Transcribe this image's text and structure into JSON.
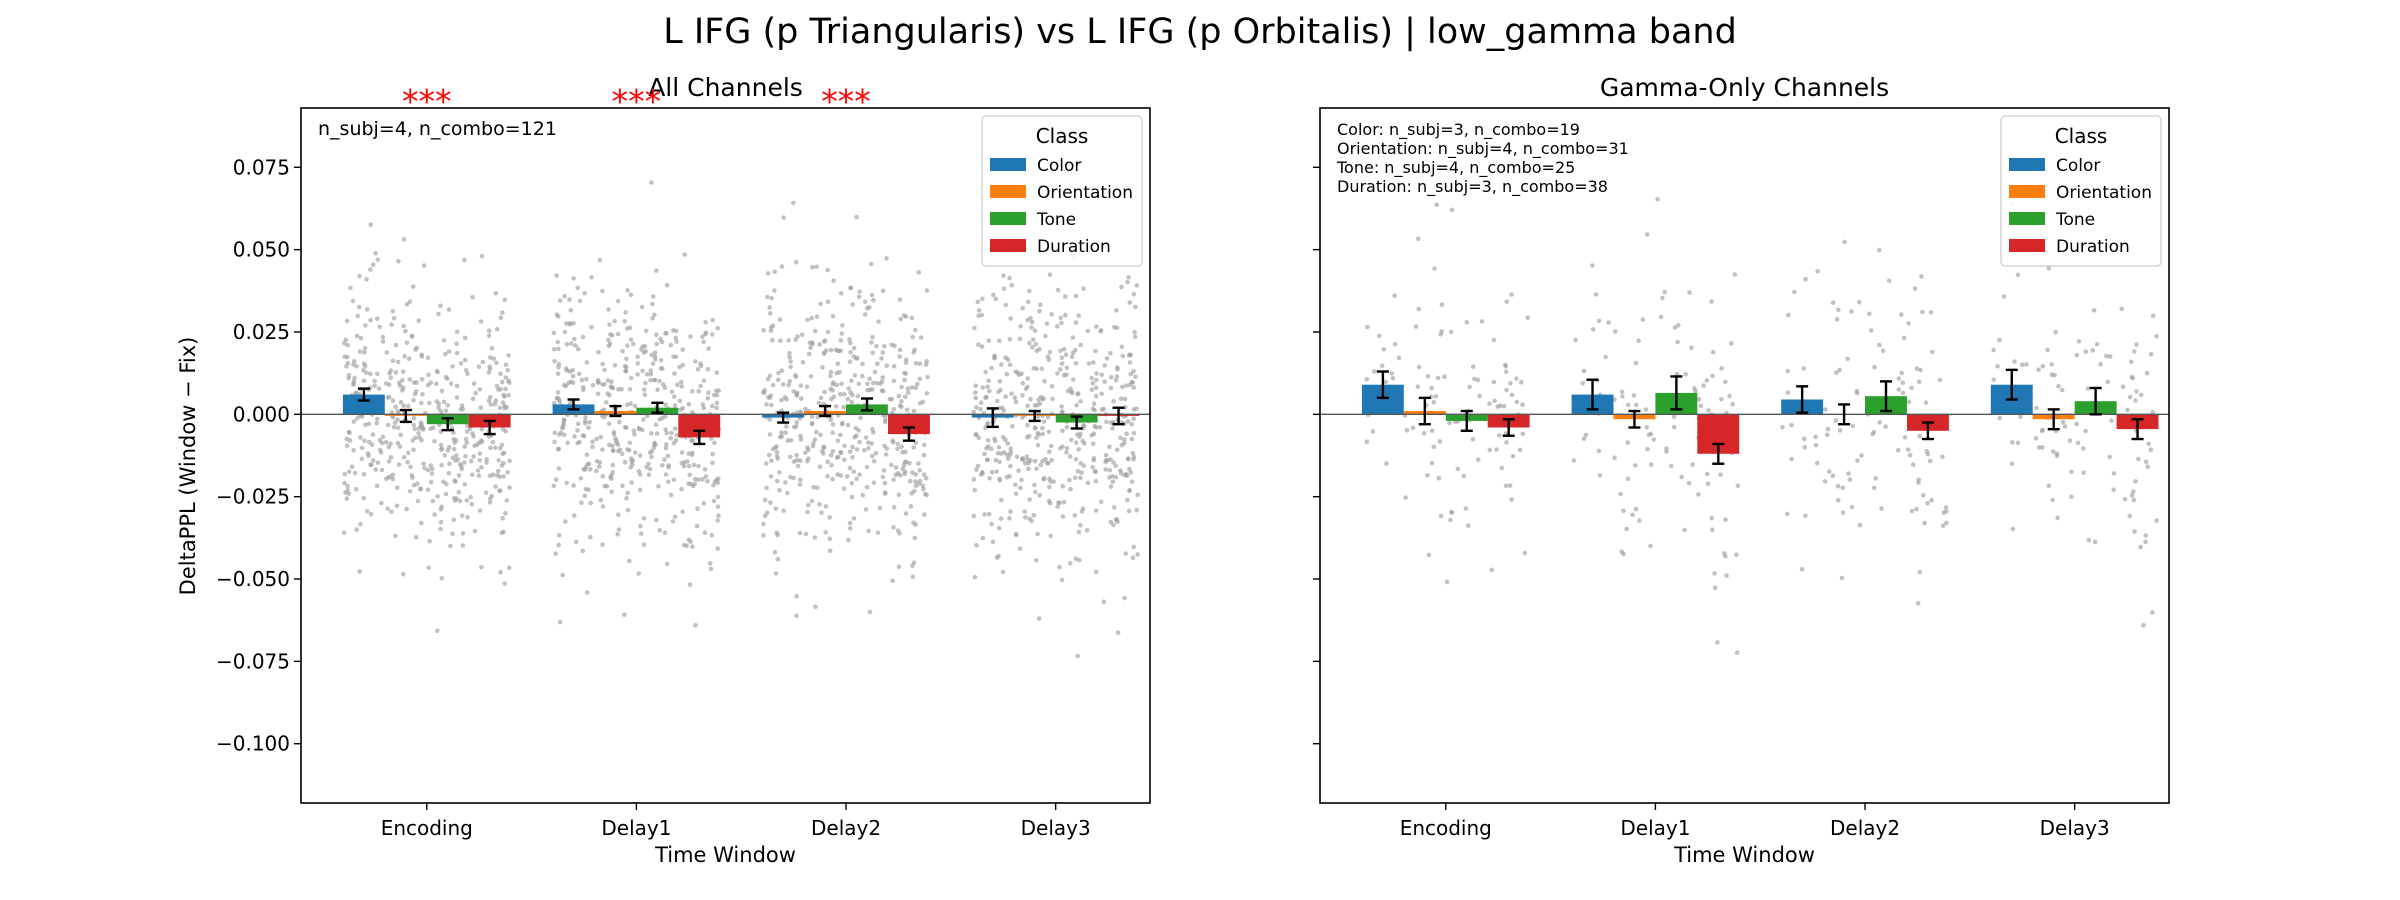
{
  "chart_data": {
    "title": "L IFG (p Triangularis) vs L IFG (p Orbitalis)  |  low_gamma band",
    "type": "bar",
    "ylabel": "DeltaPPL (Window − Fix)",
    "categories": [
      "Encoding",
      "Delay1",
      "Delay2",
      "Delay3"
    ],
    "ylim": [
      -0.118,
      0.093
    ],
    "yticks": [
      0.075,
      0.05,
      0.025,
      0.0,
      -0.025,
      -0.05,
      -0.075,
      -0.1
    ],
    "ytick_labels": [
      "0.075",
      "0.050",
      "0.025",
      "0.000",
      "−0.025",
      "−0.050",
      "−0.075",
      "−0.100"
    ],
    "legend": {
      "title": "Class",
      "placement": "upper right",
      "entries": [
        "Color",
        "Orientation",
        "Tone",
        "Duration"
      ]
    },
    "colors": {
      "Color": "#1f77b4",
      "Orientation": "#ff7f0e",
      "Tone": "#2ca02c",
      "Duration": "#d62728"
    },
    "panels": [
      {
        "title": "All Channels",
        "xlabel": "Time Window",
        "annotation": [
          "n_subj=4, n_combo=121"
        ],
        "significance": [
          {
            "category": "Encoding",
            "label": "***"
          },
          {
            "category": "Delay1",
            "label": "***"
          },
          {
            "category": "Delay2",
            "label": "***"
          }
        ],
        "series": [
          {
            "name": "Color",
            "values": [
              0.006,
              0.003,
              -0.001,
              -0.001
            ],
            "errors": [
              0.0018,
              0.0015,
              0.0015,
              0.0028
            ]
          },
          {
            "name": "Orientation",
            "values": [
              -0.0005,
              0.001,
              0.001,
              -0.0005
            ],
            "errors": [
              0.0018,
              0.0015,
              0.0015,
              0.0015
            ]
          },
          {
            "name": "Tone",
            "values": [
              -0.003,
              0.002,
              0.003,
              -0.0025
            ],
            "errors": [
              0.0018,
              0.0015,
              0.0018,
              0.0018
            ]
          },
          {
            "name": "Duration",
            "values": [
              -0.004,
              -0.007,
              -0.006,
              -0.0005
            ],
            "errors": [
              0.002,
              0.002,
              0.002,
              0.0025
            ]
          }
        ]
      },
      {
        "title": "Gamma-Only Channels",
        "xlabel": "Time Window",
        "annotation": [
          "Color: n_subj=3, n_combo=19",
          "Orientation: n_subj=4, n_combo=31",
          "Tone: n_subj=4, n_combo=25",
          "Duration: n_subj=3, n_combo=38"
        ],
        "significance": [],
        "series": [
          {
            "name": "Color",
            "values": [
              0.009,
              0.006,
              0.0045,
              0.009
            ],
            "errors": [
              0.004,
              0.0045,
              0.004,
              0.0045
            ]
          },
          {
            "name": "Orientation",
            "values": [
              0.001,
              -0.0015,
              0.0,
              -0.0015
            ],
            "errors": [
              0.004,
              0.0025,
              0.003,
              0.003
            ]
          },
          {
            "name": "Tone",
            "values": [
              -0.002,
              0.0065,
              0.0055,
              0.004
            ],
            "errors": [
              0.003,
              0.005,
              0.0045,
              0.004
            ]
          },
          {
            "name": "Duration",
            "values": [
              -0.004,
              -0.012,
              -0.005,
              -0.0045
            ],
            "errors": [
              0.0025,
              0.003,
              0.0025,
              0.003
            ]
          }
        ]
      }
    ]
  }
}
